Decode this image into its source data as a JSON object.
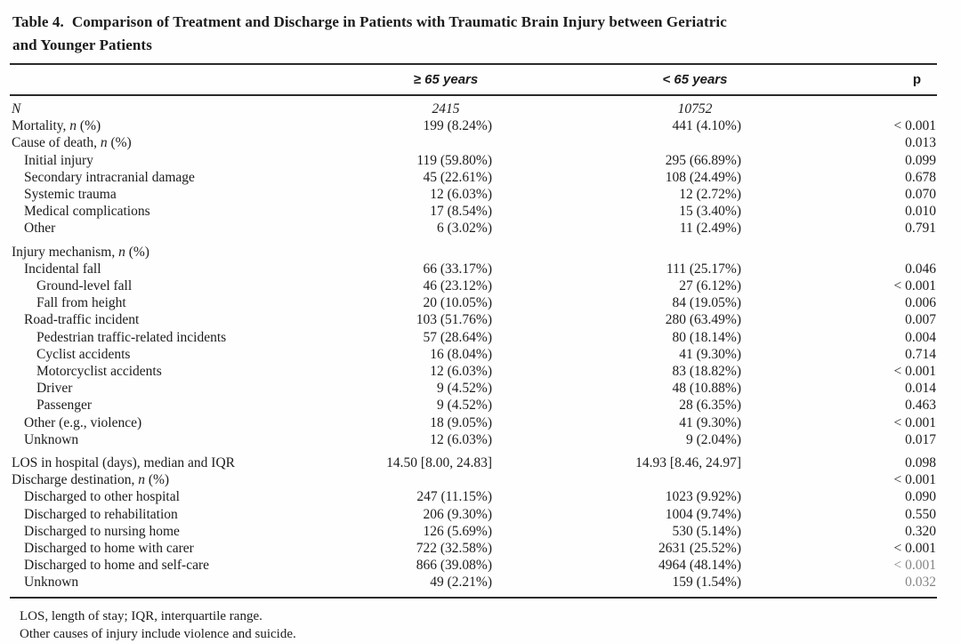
{
  "title": {
    "label": "Table 4.",
    "line1": "Comparison of Treatment and Discharge in Patients with Traumatic Brain Injury between Geriatric",
    "line2": "and Younger Patients"
  },
  "columns": {
    "ge65": "≥ 65 years",
    "lt65": "< 65 years",
    "p": "p"
  },
  "rows": [
    {
      "pre": "",
      "it": "N",
      "post": "",
      "indent": 0,
      "v1": "2415",
      "v2": "10752",
      "p": "",
      "italic_values": true
    },
    {
      "pre": "Mortality, ",
      "it": "n",
      "post": " (%)",
      "indent": 0,
      "v1": "199 (8.24%)",
      "v2": "441 (4.10%)",
      "p": "< 0.001"
    },
    {
      "pre": "Cause of death, ",
      "it": "n",
      "post": " (%)",
      "indent": 0,
      "v1": "",
      "v2": "",
      "p": "0.013"
    },
    {
      "pre": "Initial injury",
      "it": "",
      "post": "",
      "indent": 1,
      "v1": "119 (59.80%)",
      "v2": "295 (66.89%)",
      "p": "0.099"
    },
    {
      "pre": "Secondary intracranial damage",
      "it": "",
      "post": "",
      "indent": 1,
      "v1": "45 (22.61%)",
      "v2": "108 (24.49%)",
      "p": "0.678"
    },
    {
      "pre": "Systemic trauma",
      "it": "",
      "post": "",
      "indent": 1,
      "v1": "12 (6.03%)",
      "v2": "12 (2.72%)",
      "p": "0.070"
    },
    {
      "pre": "Medical complications",
      "it": "",
      "post": "",
      "indent": 1,
      "v1": "17 (8.54%)",
      "v2": "15 (3.40%)",
      "p": "0.010"
    },
    {
      "pre": "Other",
      "it": "",
      "post": "",
      "indent": 1,
      "v1": "6 (3.02%)",
      "v2": "11 (2.49%)",
      "p": "0.791"
    },
    {
      "pre": "Injury mechanism, ",
      "it": "n",
      "post": " (%)",
      "indent": 0,
      "v1": "",
      "v2": "",
      "p": "",
      "gap": true
    },
    {
      "pre": "Incidental fall",
      "it": "",
      "post": "",
      "indent": 1,
      "v1": "66 (33.17%)",
      "v2": "111 (25.17%)",
      "p": "0.046"
    },
    {
      "pre": "Ground-level fall",
      "it": "",
      "post": "",
      "indent": 2,
      "v1": "46 (23.12%)",
      "v2": "27 (6.12%)",
      "p": "< 0.001"
    },
    {
      "pre": "Fall from height",
      "it": "",
      "post": "",
      "indent": 2,
      "v1": "20 (10.05%)",
      "v2": "84 (19.05%)",
      "p": "0.006"
    },
    {
      "pre": "Road-traffic incident",
      "it": "",
      "post": "",
      "indent": 1,
      "v1": "103 (51.76%)",
      "v2": "280 (63.49%)",
      "p": "0.007"
    },
    {
      "pre": "Pedestrian traffic-related incidents",
      "it": "",
      "post": "",
      "indent": 2,
      "v1": "57 (28.64%)",
      "v2": "80 (18.14%)",
      "p": "0.004"
    },
    {
      "pre": "Cyclist accidents",
      "it": "",
      "post": "",
      "indent": 2,
      "v1": "16 (8.04%)",
      "v2": "41 (9.30%)",
      "p": "0.714"
    },
    {
      "pre": "Motorcyclist accidents",
      "it": "",
      "post": "",
      "indent": 2,
      "v1": "12 (6.03%)",
      "v2": "83 (18.82%)",
      "p": "< 0.001"
    },
    {
      "pre": "Driver",
      "it": "",
      "post": "",
      "indent": 2,
      "v1": "9 (4.52%)",
      "v2": "48 (10.88%)",
      "p": "0.014"
    },
    {
      "pre": "Passenger",
      "it": "",
      "post": "",
      "indent": 2,
      "v1": "9 (4.52%)",
      "v2": "28 (6.35%)",
      "p": "0.463"
    },
    {
      "pre": "Other (e.g., violence)",
      "it": "",
      "post": "",
      "indent": 1,
      "v1": "18 (9.05%)",
      "v2": "41 (9.30%)",
      "p": "< 0.001"
    },
    {
      "pre": "Unknown",
      "it": "",
      "post": "",
      "indent": 1,
      "v1": "12 (6.03%)",
      "v2": "9 (2.04%)",
      "p": "0.017"
    },
    {
      "pre": "LOS in hospital (days), median and IQR",
      "it": "",
      "post": "",
      "indent": 0,
      "v1": "14.50 [8.00, 24.83]",
      "v2": "14.93 [8.46, 24.97]",
      "p": "0.098",
      "gap": true
    },
    {
      "pre": "Discharge destination, ",
      "it": "n",
      "post": " (%)",
      "indent": 0,
      "v1": "",
      "v2": "",
      "p": "< 0.001"
    },
    {
      "pre": "Discharged to other hospital",
      "it": "",
      "post": "",
      "indent": 1,
      "v1": "247 (11.15%)",
      "v2": "1023 (9.92%)",
      "p": "0.090"
    },
    {
      "pre": "Discharged to rehabilitation",
      "it": "",
      "post": "",
      "indent": 1,
      "v1": "206 (9.30%)",
      "v2": "1004 (9.74%)",
      "p": "0.550"
    },
    {
      "pre": "Discharged to nursing home",
      "it": "",
      "post": "",
      "indent": 1,
      "v1": "126 (5.69%)",
      "v2": "530 (5.14%)",
      "p": "0.320"
    },
    {
      "pre": "Discharged to home with carer",
      "it": "",
      "post": "",
      "indent": 1,
      "v1": "722 (32.58%)",
      "v2": "2631 (25.52%)",
      "p": "< 0.001"
    },
    {
      "pre": "Discharged to home and self-care",
      "it": "",
      "post": "",
      "indent": 1,
      "v1": "866 (39.08%)",
      "v2": "4964 (48.14%)",
      "p": "< 0.001"
    },
    {
      "pre": "Unknown",
      "it": "",
      "post": "",
      "indent": 1,
      "v1": "49 (2.21%)",
      "v2": "159 (1.54%)",
      "p": "0.032"
    }
  ],
  "footnotes": [
    "LOS, length of stay; IQR, interquartile range.",
    "Other causes of injury include violence and suicide."
  ]
}
